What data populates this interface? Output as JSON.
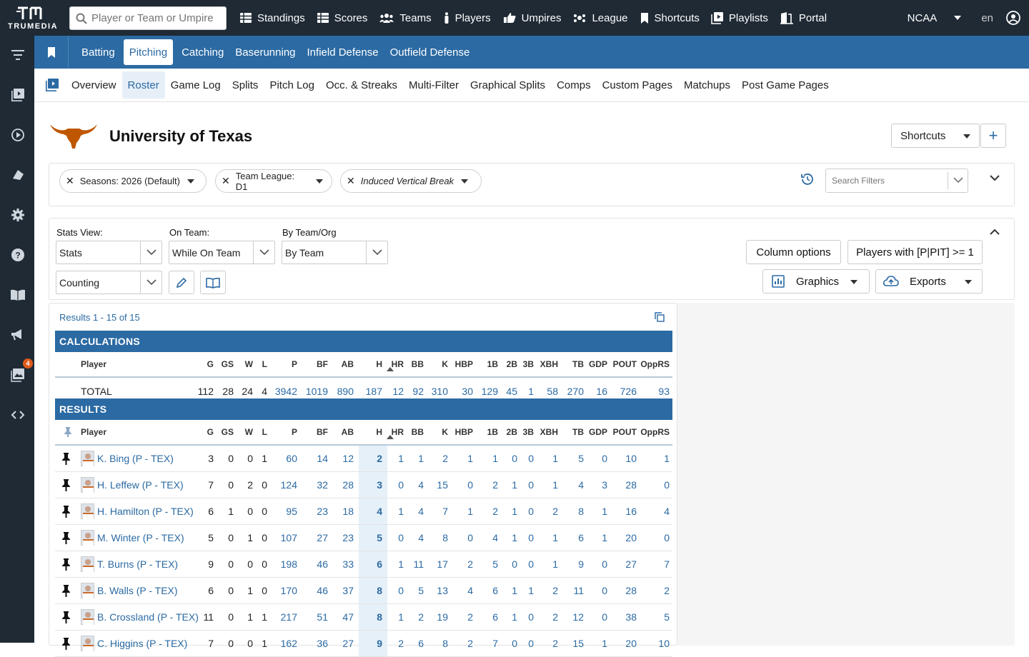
{
  "brand": {
    "name": "TRUMEDIA"
  },
  "search": {
    "placeholder": "Player or Team or Umpire"
  },
  "topnav": [
    "Standings",
    "Scores",
    "Teams",
    "Players",
    "Umpires",
    "League",
    "Shortcuts",
    "Playlists",
    "Portal"
  ],
  "org": "NCAA",
  "lang": "en",
  "tabs": [
    "Batting",
    "Pitching",
    "Catching",
    "Baserunning",
    "Infield Defense",
    "Outfield Defense"
  ],
  "active_tab": "Pitching",
  "subtabs": [
    "Overview",
    "Roster",
    "Game Log",
    "Splits",
    "Pitch Log",
    "Occ. & Streaks",
    "Multi-Filter",
    "Graphical Splits",
    "Comps",
    "Custom Pages",
    "Matchups",
    "Post Game Pages"
  ],
  "active_subtab": "Roster",
  "notification_count": "4",
  "team": {
    "name": "University of Texas"
  },
  "header_buttons": {
    "shortcuts": "Shortcuts",
    "add": "+"
  },
  "filters": {
    "chips": [
      "Seasons: 2026 (Default)",
      "Team League: D1",
      "Induced Vertical Break"
    ],
    "search_placeholder": "Search Filters"
  },
  "options": {
    "stats_view_label": "Stats View:",
    "stats_view": "Stats",
    "on_team_label": "On Team:",
    "on_team": "While On Team",
    "by_team_label": "By Team/Org",
    "by_team": "By Team",
    "counting": "Counting",
    "column_options": "Column options",
    "players_with": "Players with [P|PIT] >= 1",
    "graphics": "Graphics",
    "exports": "Exports"
  },
  "results": {
    "count_text": "Results 1 - 15 of 15",
    "calc_title": "CALCULATIONS",
    "results_title": "RESULTS",
    "columns": [
      "Player",
      "G",
      "GS",
      "W",
      "L",
      "P",
      "BF",
      "AB",
      "H",
      "HR",
      "BB",
      "K",
      "HBP",
      "1B",
      "2B",
      "3B",
      "XBH",
      "TB",
      "GDP",
      "POUT",
      "OppRS"
    ],
    "total": {
      "label": "TOTAL",
      "values": [
        "112",
        "28",
        "24",
        "4",
        "3942",
        "1019",
        "890",
        "187",
        "12",
        "92",
        "310",
        "30",
        "129",
        "45",
        "1",
        "58",
        "270",
        "16",
        "726",
        "93"
      ]
    },
    "rows": [
      {
        "player": "K. Bing (P - TEX)",
        "values": [
          "3",
          "0",
          "0",
          "1",
          "60",
          "14",
          "12",
          "2",
          "1",
          "1",
          "2",
          "1",
          "1",
          "0",
          "0",
          "1",
          "5",
          "0",
          "10",
          "1"
        ]
      },
      {
        "player": "H. Leffew (P - TEX)",
        "values": [
          "7",
          "0",
          "2",
          "0",
          "124",
          "32",
          "28",
          "3",
          "0",
          "4",
          "15",
          "0",
          "2",
          "1",
          "0",
          "1",
          "4",
          "3",
          "28",
          "0"
        ]
      },
      {
        "player": "H. Hamilton (P - TEX)",
        "values": [
          "6",
          "1",
          "0",
          "0",
          "95",
          "23",
          "18",
          "4",
          "1",
          "4",
          "7",
          "1",
          "2",
          "1",
          "0",
          "2",
          "8",
          "1",
          "16",
          "4"
        ]
      },
      {
        "player": "M. Winter (P - TEX)",
        "values": [
          "5",
          "0",
          "1",
          "0",
          "107",
          "27",
          "23",
          "5",
          "0",
          "4",
          "8",
          "0",
          "4",
          "1",
          "0",
          "1",
          "6",
          "1",
          "20",
          "0"
        ]
      },
      {
        "player": "T. Burns (P - TEX)",
        "values": [
          "9",
          "0",
          "0",
          "0",
          "198",
          "46",
          "33",
          "6",
          "1",
          "11",
          "17",
          "2",
          "5",
          "0",
          "0",
          "1",
          "9",
          "0",
          "27",
          "7"
        ]
      },
      {
        "player": "B. Walls (P - TEX)",
        "values": [
          "6",
          "0",
          "1",
          "0",
          "170",
          "46",
          "37",
          "8",
          "0",
          "5",
          "13",
          "4",
          "6",
          "1",
          "1",
          "2",
          "11",
          "0",
          "28",
          "2"
        ]
      },
      {
        "player": "B. Crossland (P - TEX)",
        "values": [
          "11",
          "0",
          "1",
          "1",
          "217",
          "51",
          "47",
          "8",
          "1",
          "2",
          "19",
          "2",
          "6",
          "1",
          "0",
          "2",
          "12",
          "0",
          "38",
          "5"
        ]
      },
      {
        "player": "C. Higgins (P - TEX)",
        "values": [
          "7",
          "0",
          "0",
          "1",
          "162",
          "36",
          "27",
          "9",
          "2",
          "6",
          "8",
          "2",
          "7",
          "0",
          "0",
          "2",
          "15",
          "1",
          "20",
          "10"
        ]
      }
    ]
  },
  "colors": {
    "dark": "#1f2a35",
    "primary": "#2b6aa3",
    "accent": "#e05a1c"
  }
}
